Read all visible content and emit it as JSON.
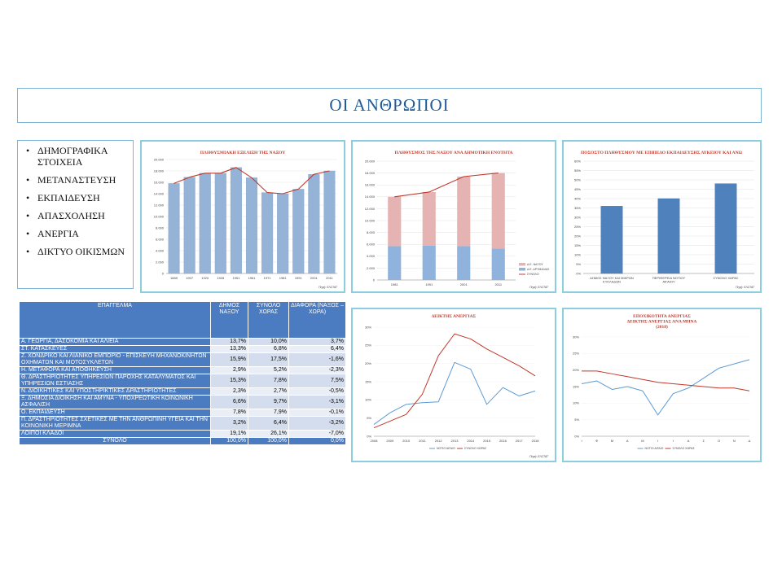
{
  "title": "ΟΙ ΑΝΘΡΩΠΟΙ",
  "menu": {
    "items": [
      "ΔΗΜΟΓΡΑΦΙΚΑ ΣΤΟΙΧΕΙΑ",
      "ΜΕΤΑΝΑΣΤΕΥΣΗ",
      "ΕΚΠΑΙΔΕΥΣΗ",
      "ΑΠΑΣΧΟΛΗΣΗ",
      "ΑΝΕΡΓΙΑ",
      "ΔΙΚΤΥΟ ΟΙΚΙΣΜΩΝ"
    ]
  },
  "chart_data": [
    {
      "id": "population-evolution",
      "type": "bar",
      "title": "ΠΛΗΘΥΣΜΙΑΚΗ ΕΞΕΛΙΞΗ ΤΗΣ ΝΑΞΟΥ",
      "source": "Πηγή: ΕΛΣΤΑΤ",
      "categories": [
        "1889",
        "1907",
        "1920",
        "1928",
        "1951",
        "1961",
        "1971",
        "1981",
        "1991",
        "2001",
        "2011"
      ],
      "values": [
        15800,
        16900,
        17600,
        17600,
        18600,
        16800,
        14200,
        14000,
        14800,
        17400,
        18000
      ],
      "line_values": [
        15800,
        16900,
        17600,
        17600,
        18600,
        16800,
        14200,
        14000,
        14800,
        17400,
        18000
      ],
      "y_ticks": [
        "0",
        "2.000",
        "4.000",
        "6.000",
        "8.000",
        "10.000",
        "12.000",
        "14.000",
        "16.000",
        "18.000",
        "20.000"
      ],
      "ylim": [
        0,
        20000
      ]
    },
    {
      "id": "population-by-unit",
      "type": "bar",
      "title": "ΠΛΗΘΥΣΜΟΣ ΤΗΣ ΝΑΞΟΥ ΑΝΑ ΔΗΜΟΤΙΚΗ ΕΝΟΤΗΤΑ",
      "source": "Πηγή: ΕΛΣΤΑΤ",
      "categories": [
        "1981",
        "1991",
        "2001",
        "2011"
      ],
      "series": [
        {
          "name": "Δ.Ε. ΔΡΥΜΑΛΙΑΣ",
          "values": [
            5700,
            5800,
            5700,
            5300
          ],
          "color": "#8fb3dc"
        },
        {
          "name": "Δ.Ε. ΝΑΞΟΥ",
          "values": [
            8300,
            9000,
            11700,
            12700
          ],
          "color": "#e6b3b3"
        }
      ],
      "line": {
        "name": "ΣΥΝΟΛΟ",
        "values": [
          14000,
          14800,
          17400,
          18000
        ],
        "color": "#c0392b"
      },
      "y_ticks": [
        "0",
        "2.000",
        "4.000",
        "6.000",
        "8.000",
        "10.000",
        "12.000",
        "14.000",
        "16.000",
        "18.000",
        "20.000"
      ],
      "ylim": [
        0,
        20000
      ]
    },
    {
      "id": "education-share",
      "type": "bar",
      "title": "ΠΟΣΟΣΤΟ ΠΛΗΘΥΣΜΟΥ ΜΕ ΕΠΙΠΕΔΟ ΕΚΠΑΙΔΕΥΣΗΣ ΛΥΚΕΙΟΥ ΚΑΙ ΑΝΩ",
      "source": "Πηγή: ΕΛΣΤΑΤ",
      "categories": [
        "ΔΗΜΟΣ ΝΑΞΟΥ ΚΑΙ ΜΙΚΡΩΝ ΚΥΚΛΑΔΩΝ",
        "ΠΕΡΙΦΕΡΕΙΑ ΝΟΤΙΟΥ ΑΙΓΑΙΟΥ",
        "ΣΥΝΟΛΟ ΧΩΡΑΣ"
      ],
      "values": [
        36,
        40,
        48
      ],
      "y_ticks": [
        "0%",
        "5%",
        "10%",
        "15%",
        "20%",
        "25%",
        "30%",
        "35%",
        "40%",
        "45%",
        "50%",
        "55%",
        "60%"
      ],
      "ylim": [
        0,
        60
      ]
    },
    {
      "id": "unemployment-index",
      "type": "line",
      "title": "ΔΕΙΚΤΗΣ ΑΝΕΡΓΙΑΣ",
      "source": "Πηγή: ΕΛΣΤΑΤ",
      "x": [
        "2008",
        "2009",
        "2010",
        "2011",
        "2012",
        "2013",
        "2014",
        "2015",
        "2016",
        "2017",
        "2018"
      ],
      "series": [
        {
          "name": "ΝΟΤΙΟ ΑΙΓΑΙΟ",
          "values": [
            7,
            14,
            19,
            20,
            20.5,
            44,
            40,
            19,
            29,
            24,
            27
          ],
          "color": "#5b9bd5"
        },
        {
          "name": "ΣΥΝΟΛΟ ΧΩΡΑΣ",
          "values": [
            5,
            9,
            13,
            25,
            48,
            61,
            58,
            52,
            47,
            42,
            36
          ],
          "color": "#c0392b"
        }
      ],
      "y_ticks": [
        "0%",
        "5%",
        "10%",
        "15%",
        "20%",
        "25%",
        "30%"
      ],
      "ylim": [
        0,
        65
      ]
    },
    {
      "id": "unemployment-seasonality",
      "type": "line",
      "title": "ΕΠΟΧΙΚΟΤΗΤΑ ΑΝΕΡΓΙΑΣ",
      "subtitle": "ΔΕΙΚΤΗΣ ΑΝΕΡΓΙΑΣ ΑΝΑ ΜΗΝΑ",
      "subtitle2": "(2018)",
      "x": [
        "Ι",
        "Φ",
        "Μ",
        "Α",
        "Μ",
        "Ι",
        "Ι",
        "Α",
        "Σ",
        "Ο",
        "Ν",
        "Δ"
      ],
      "series": [
        {
          "name": "ΝΟΤΙΟ ΑΙΓΑΙΟ",
          "values": [
            18.5,
            19.5,
            16.5,
            17.5,
            16,
            7.5,
            15,
            17,
            20.5,
            24,
            25.5,
            27
          ],
          "color": "#5b9bd5"
        },
        {
          "name": "ΣΥΝΟΛΟ ΧΩΡΑΣ",
          "values": [
            23,
            23,
            22,
            21,
            20,
            19,
            18.5,
            18,
            17.5,
            17,
            17,
            16
          ],
          "color": "#c0392b"
        }
      ],
      "y_ticks": [
        "0%",
        "5%",
        "10%",
        "15%",
        "20%",
        "25%",
        "30%"
      ],
      "ylim": [
        0,
        35
      ]
    }
  ],
  "table": {
    "headers": [
      "ΕΠΑΓΓΕΛΜΑ",
      "ΔΗΜΟΣ ΝΑΞΟΥ",
      "ΣΥΝΟΛΟ ΧΩΡΑΣ",
      "ΔΙΑΦΟΡΑ (ΝΑΞΟΣ – ΧΩΡΑ)"
    ],
    "rows": [
      {
        "label": "Α. ΓΕΩΡΓΙΑ, ΔΑΣΟΚΟΜΙΑ ΚΑΙ ΑΛΙΕΙΑ",
        "naxos": "13,7%",
        "country": "10,0%",
        "diff": "3,7%"
      },
      {
        "label": "ΣΤ. ΚΑΤΑΣΚΕΥΕΣ",
        "naxos": "13,3%",
        "country": "6,8%",
        "diff": "6,4%"
      },
      {
        "label": "Ζ. ΧΟΝΔΡΙΚΟ ΚΑΙ ΛΙΑΝΙΚΟ ΕΜΠΟΡΙΟ - ΕΠΙΣΚΕΥΗ ΜΗΧΑΝΟΚΙΝΗΤΩΝ ΟΧΗΜΑΤΩΝ ΚΑΙ ΜΟΤΟΣΥΚΛΕΤΩΝ",
        "naxos": "15,9%",
        "country": "17,5%",
        "diff": "-1,6%"
      },
      {
        "label": "Η. ΜΕΤΑΦΟΡΑ ΚΑΙ ΑΠΟΘΗΚΕΥΣΗ",
        "naxos": "2,9%",
        "country": "5,2%",
        "diff": "-2,3%"
      },
      {
        "label": "Θ. ΔΡΑΣΤΗΡΙΟΤΗΤΕΣ ΥΠΗΡΕΣΙΩΝ ΠΑΡΟΧΗΣ ΚΑΤΑΛΥΜΑΤΟΣ ΚΑΙ ΥΠΗΡΕΣΙΩΝ ΕΣΤΙΑΣΗΣ",
        "naxos": "15,3%",
        "country": "7,8%",
        "diff": "7,5%"
      },
      {
        "label": "Ν. ΔΙΟΙΚΗΤΙΚΕΣ ΚΑΙ ΥΠΟΣΤΗΡΙΚΤΙΚΕΣ ΔΡΑΣΤΗΡΙΟΤΗΤΕΣ",
        "naxos": "2,3%",
        "country": "2,7%",
        "diff": "-0,5%"
      },
      {
        "label": "Ξ. ΔΗΜΟΣΙΑ ΔΙΟΙΚΗΣΗ ΚΑΙ ΑΜΥΝΑ - ΥΠΟΧΡΕΩΤΙΚΗ ΚΟΙΝΩΝΙΚΗ ΑΣΦΑΛΙΣΗ",
        "naxos": "6,6%",
        "country": "9,7%",
        "diff": "-3,1%"
      },
      {
        "label": "Ο. ΕΚΠΑΙΔΕΥΣΗ",
        "naxos": "7,8%",
        "country": "7,9%",
        "diff": "-0,1%"
      },
      {
        "label": "Π. ΔΡΑΣΤΗΡΙΟΤΗΤΕΣ ΣΧΕΤΙΚΕΣ ΜΕ ΤΗΝ ΑΝΘΡΩΠΙΝΗ ΥΓΕΙΑ ΚΑΙ ΤΗΝ ΚΟΙΝΩΝΙΚΗ ΜΕΡΙΜΝΑ",
        "naxos": "3,2%",
        "country": "6,4%",
        "diff": "-3,2%"
      },
      {
        "label": "ΛΟΙΠΟΙ ΚΛΑΔΟΙ",
        "naxos": "19,1%",
        "country": "26,1%",
        "diff": "-7,0%"
      }
    ],
    "total": {
      "label": "ΣΥΝΟΛΟ",
      "naxos": "100,0%",
      "country": "100,0%",
      "diff": "0,0%"
    }
  }
}
